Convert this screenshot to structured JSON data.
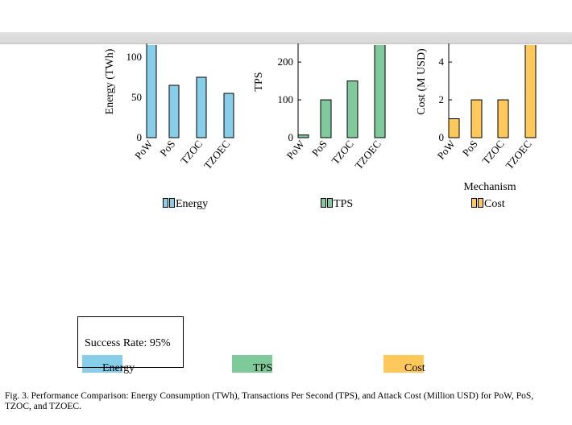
{
  "chart_data": [
    {
      "type": "bar",
      "categories": [
        "PoW",
        "PoS",
        "TZOC",
        "TZOEC"
      ],
      "values": [
        120,
        65,
        75,
        55
      ],
      "title": "",
      "xlabel": "",
      "ylabel": "Energy (TWh)",
      "ylim": [
        0,
        115
      ],
      "yticks": [
        "0",
        "50",
        "100"
      ],
      "color": "#87ceeb",
      "legend": "Energy"
    },
    {
      "type": "bar",
      "categories": [
        "PoW",
        "PoS",
        "TZOC",
        "TZOEC"
      ],
      "values": [
        7,
        100,
        150,
        250
      ],
      "title": "",
      "xlabel": "",
      "ylabel": "TPS",
      "ylim": [
        0,
        245
      ],
      "yticks": [
        "0",
        "100",
        "200"
      ],
      "color": "#7fc99b",
      "legend": "TPS"
    },
    {
      "type": "bar",
      "categories": [
        "PoW",
        "PoS",
        "TZOC",
        "TZOEC"
      ],
      "values": [
        1,
        2,
        2,
        5
      ],
      "title": "",
      "xlabel": "Mechanism",
      "ylabel": "Cost (M USD)",
      "ylim": [
        0,
        4.9
      ],
      "yticks": [
        "0",
        "2",
        "4"
      ],
      "color": "#ffc85a",
      "legend": "Cost"
    }
  ],
  "bottom_legend": {
    "energy": {
      "label": "Energy",
      "color": "#87ceeb"
    },
    "tps": {
      "label": "TPS",
      "color": "#7fc99b"
    },
    "cost": {
      "label": "Cost",
      "color": "#ffc85a"
    }
  },
  "success_rate": "Success Rate: 95%",
  "caption": "Fig. 3.  Performance Comparison: Energy Consumption (TWh), Transactions Per Second (TPS), and Attack Cost (Million USD) for PoW, PoS, TZOC, and TZOEC."
}
